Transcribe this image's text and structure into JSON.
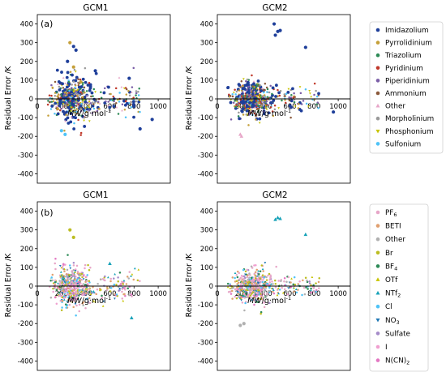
{
  "figure": {
    "ylabel": "Residual Error /K",
    "xlabel_parts": [
      "MW",
      "/g·mol",
      "-1"
    ],
    "x_ticks": [
      0,
      200,
      400,
      600,
      800,
      1000
    ],
    "y_ticks": [
      400,
      300,
      200,
      100,
      0,
      -100,
      -200,
      -300,
      -400
    ],
    "legend_a": [
      {
        "label": "Imidazolium",
        "color": "#1f3f9a",
        "marker": "circle"
      },
      {
        "label": "Pyrrolidinium",
        "color": "#c5a03a",
        "marker": "circle"
      },
      {
        "label": "Triazolium",
        "color": "#2e8b57",
        "marker": "circle"
      },
      {
        "label": "Pyridinium",
        "color": "#c0392b",
        "marker": "circle"
      },
      {
        "label": "Piperidinium",
        "color": "#7b5ea7",
        "marker": "circle"
      },
      {
        "label": "Ammonium",
        "color": "#8b5a3c",
        "marker": "circle"
      },
      {
        "label": "Other",
        "color": "#e7a6c8",
        "marker": "triangle-up"
      },
      {
        "label": "Morpholinium",
        "color": "#9a9a9a",
        "marker": "circle"
      },
      {
        "label": "Phosphonium",
        "color": "#c8c400",
        "marker": "triangle-down"
      },
      {
        "label": "Sulfonium",
        "color": "#4fc3f7",
        "marker": "circle"
      }
    ],
    "legend_b": [
      {
        "label_parts": [
          "PF",
          "6",
          ""
        ],
        "color": "#e7a6c8",
        "marker": "circle"
      },
      {
        "label_parts": [
          "BETI",
          "",
          ""
        ],
        "color": "#e0a070",
        "marker": "circle"
      },
      {
        "label_parts": [
          "Other",
          "",
          ""
        ],
        "color": "#b0b0b0",
        "marker": "circle"
      },
      {
        "label_parts": [
          "Br",
          "",
          ""
        ],
        "color": "#bcbd22",
        "marker": "circle"
      },
      {
        "label_parts": [
          "BF",
          "4",
          ""
        ],
        "color": "#2e8b57",
        "marker": "circle"
      },
      {
        "label_parts": [
          "OTf",
          "",
          ""
        ],
        "color": "#c8c400",
        "marker": "triangle-up"
      },
      {
        "label_parts": [
          "NTf",
          "2",
          ""
        ],
        "color": "#17a2b8",
        "marker": "triangle-up"
      },
      {
        "label_parts": [
          "Cl",
          "",
          ""
        ],
        "color": "#4fc3f7",
        "marker": "circle"
      },
      {
        "label_parts": [
          "NO",
          "3",
          ""
        ],
        "color": "#1f77b4",
        "marker": "triangle-down"
      },
      {
        "label_parts": [
          "Sulfate",
          "",
          ""
        ],
        "color": "#a58bc9",
        "marker": "circle"
      },
      {
        "label_parts": [
          "I",
          "",
          ""
        ],
        "color": "#f0a0d0",
        "marker": "circle"
      },
      {
        "label_parts": [
          "N(CN)",
          "2",
          ""
        ],
        "color": "#e377c2",
        "marker": "circle"
      }
    ]
  },
  "chart_data": [
    {
      "type": "scatter",
      "panel": "(a)",
      "title": "GCM1",
      "xlim": [
        0,
        1100
      ],
      "ylim": [
        -450,
        450
      ],
      "grid": false,
      "series": [
        {
          "name": "Imidazolium",
          "values_sample": [
            [
              300,
              280
            ],
            [
              320,
              260
            ],
            [
              250,
              200
            ],
            [
              480,
              150
            ],
            [
              760,
              110
            ],
            [
              850,
              -160
            ],
            [
              950,
              -110
            ]
          ]
        },
        {
          "name": "Pyrrolidinium",
          "values_sample": [
            [
              270,
              300
            ],
            [
              300,
              170
            ],
            [
              360,
              90
            ]
          ]
        },
        {
          "name": "Sulfonium",
          "values_sample": [
            [
              200,
              -170
            ],
            [
              230,
              -190
            ]
          ]
        }
      ]
    },
    {
      "type": "scatter",
      "panel": "(a)",
      "title": "GCM2",
      "xlim": [
        0,
        1100
      ],
      "ylim": [
        -450,
        450
      ],
      "grid": false,
      "series": [
        {
          "name": "Imidazolium",
          "values_sample": [
            [
              470,
              400
            ],
            [
              500,
              360
            ],
            [
              480,
              340
            ],
            [
              520,
              365
            ],
            [
              730,
              275
            ],
            [
              960,
              -70
            ]
          ]
        },
        {
          "name": "Other",
          "values_sample": [
            [
              190,
              -190
            ],
            [
              200,
              -200
            ]
          ]
        }
      ]
    },
    {
      "type": "scatter",
      "panel": "(b)",
      "title": "GCM1",
      "xlim": [
        0,
        1100
      ],
      "ylim": [
        -450,
        450
      ],
      "grid": false,
      "series": [
        {
          "name": "Br",
          "values_sample": [
            [
              270,
              300
            ],
            [
              300,
              260
            ]
          ]
        },
        {
          "name": "NTf2",
          "values_sample": [
            [
              600,
              120
            ],
            [
              780,
              -170
            ]
          ]
        }
      ]
    },
    {
      "type": "scatter",
      "panel": "(b)",
      "title": "GCM2",
      "xlim": [
        0,
        1100
      ],
      "ylim": [
        -450,
        450
      ],
      "grid": false,
      "series": [
        {
          "name": "NTf2",
          "values_sample": [
            [
              480,
              355
            ],
            [
              500,
              365
            ],
            [
              520,
              360
            ],
            [
              730,
              275
            ]
          ]
        },
        {
          "name": "Other",
          "values_sample": [
            [
              190,
              -210
            ],
            [
              220,
              -200
            ]
          ]
        }
      ]
    }
  ]
}
